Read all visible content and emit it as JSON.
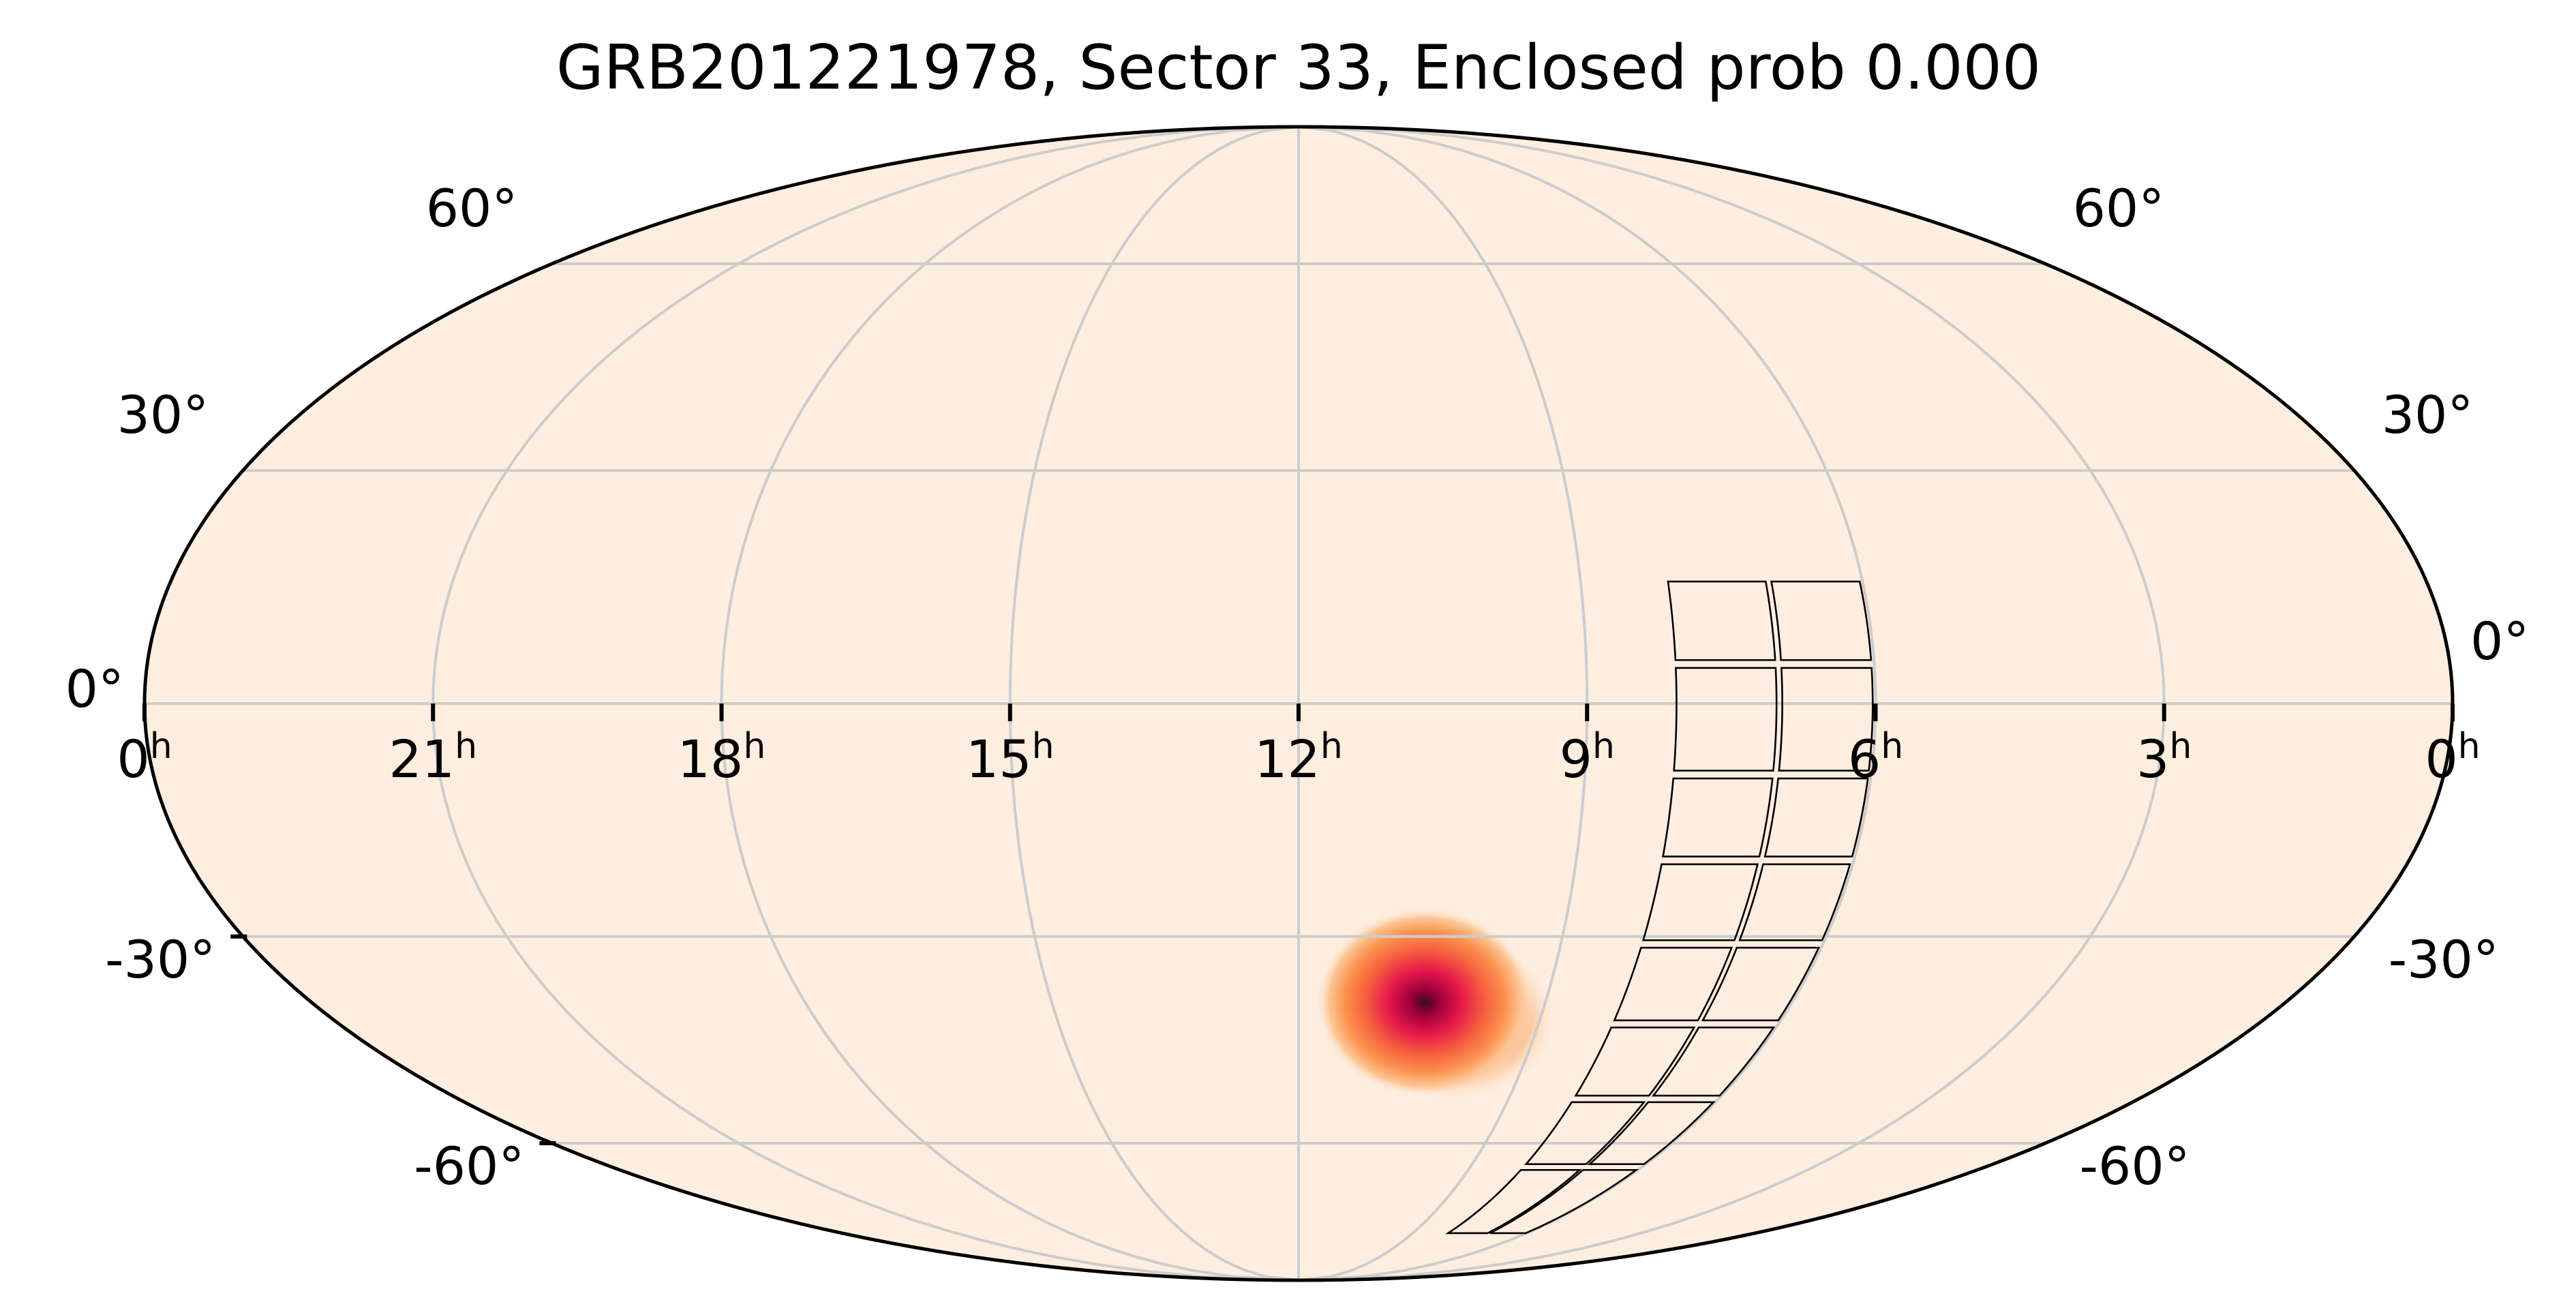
{
  "chart_data": {
    "type": "heatmap",
    "title": "GRB201221978, Sector 33, Enclosed prob 0.000",
    "projection": "mollweide",
    "background_color": "#fdeee0",
    "colormap": [
      "#fdeee0",
      "#fdc593",
      "#fb9350",
      "#f5603d",
      "#e6194b",
      "#a0003c",
      "#3d0a1a"
    ],
    "grid": true,
    "ra_ticks": [
      {
        "ra_h": 24,
        "label": "0",
        "unit": "h"
      },
      {
        "ra_h": 21,
        "label": "21",
        "unit": "h"
      },
      {
        "ra_h": 18,
        "label": "18",
        "unit": "h"
      },
      {
        "ra_h": 15,
        "label": "15",
        "unit": "h"
      },
      {
        "ra_h": 12,
        "label": "12",
        "unit": "h"
      },
      {
        "ra_h": 9,
        "label": "9",
        "unit": "h"
      },
      {
        "ra_h": 6,
        "label": "6",
        "unit": "h"
      },
      {
        "ra_h": 3,
        "label": "3",
        "unit": "h"
      },
      {
        "ra_h": 0,
        "label": "0",
        "unit": "h"
      }
    ],
    "dec_ticks": [
      {
        "dec": 60,
        "label": "60°"
      },
      {
        "dec": 30,
        "label": "30°"
      },
      {
        "dec": 0,
        "label": "0°"
      },
      {
        "dec": -30,
        "label": "-30°"
      },
      {
        "dec": -60,
        "label": "-60°"
      }
    ],
    "probability_peak": {
      "ra_h": 10.6,
      "dec": -38
    },
    "sector_footprint": {
      "sector": 33,
      "columns": [
        {
          "ra_min_h": 6.0,
          "ra_max_h": 7.0
        },
        {
          "ra_min_h": 7.0,
          "ra_max_h": 8.1
        }
      ],
      "dec_edges": [
        16,
        5,
        -9,
        -20,
        -31,
        -42,
        -53,
        -64,
        -77
      ]
    }
  }
}
